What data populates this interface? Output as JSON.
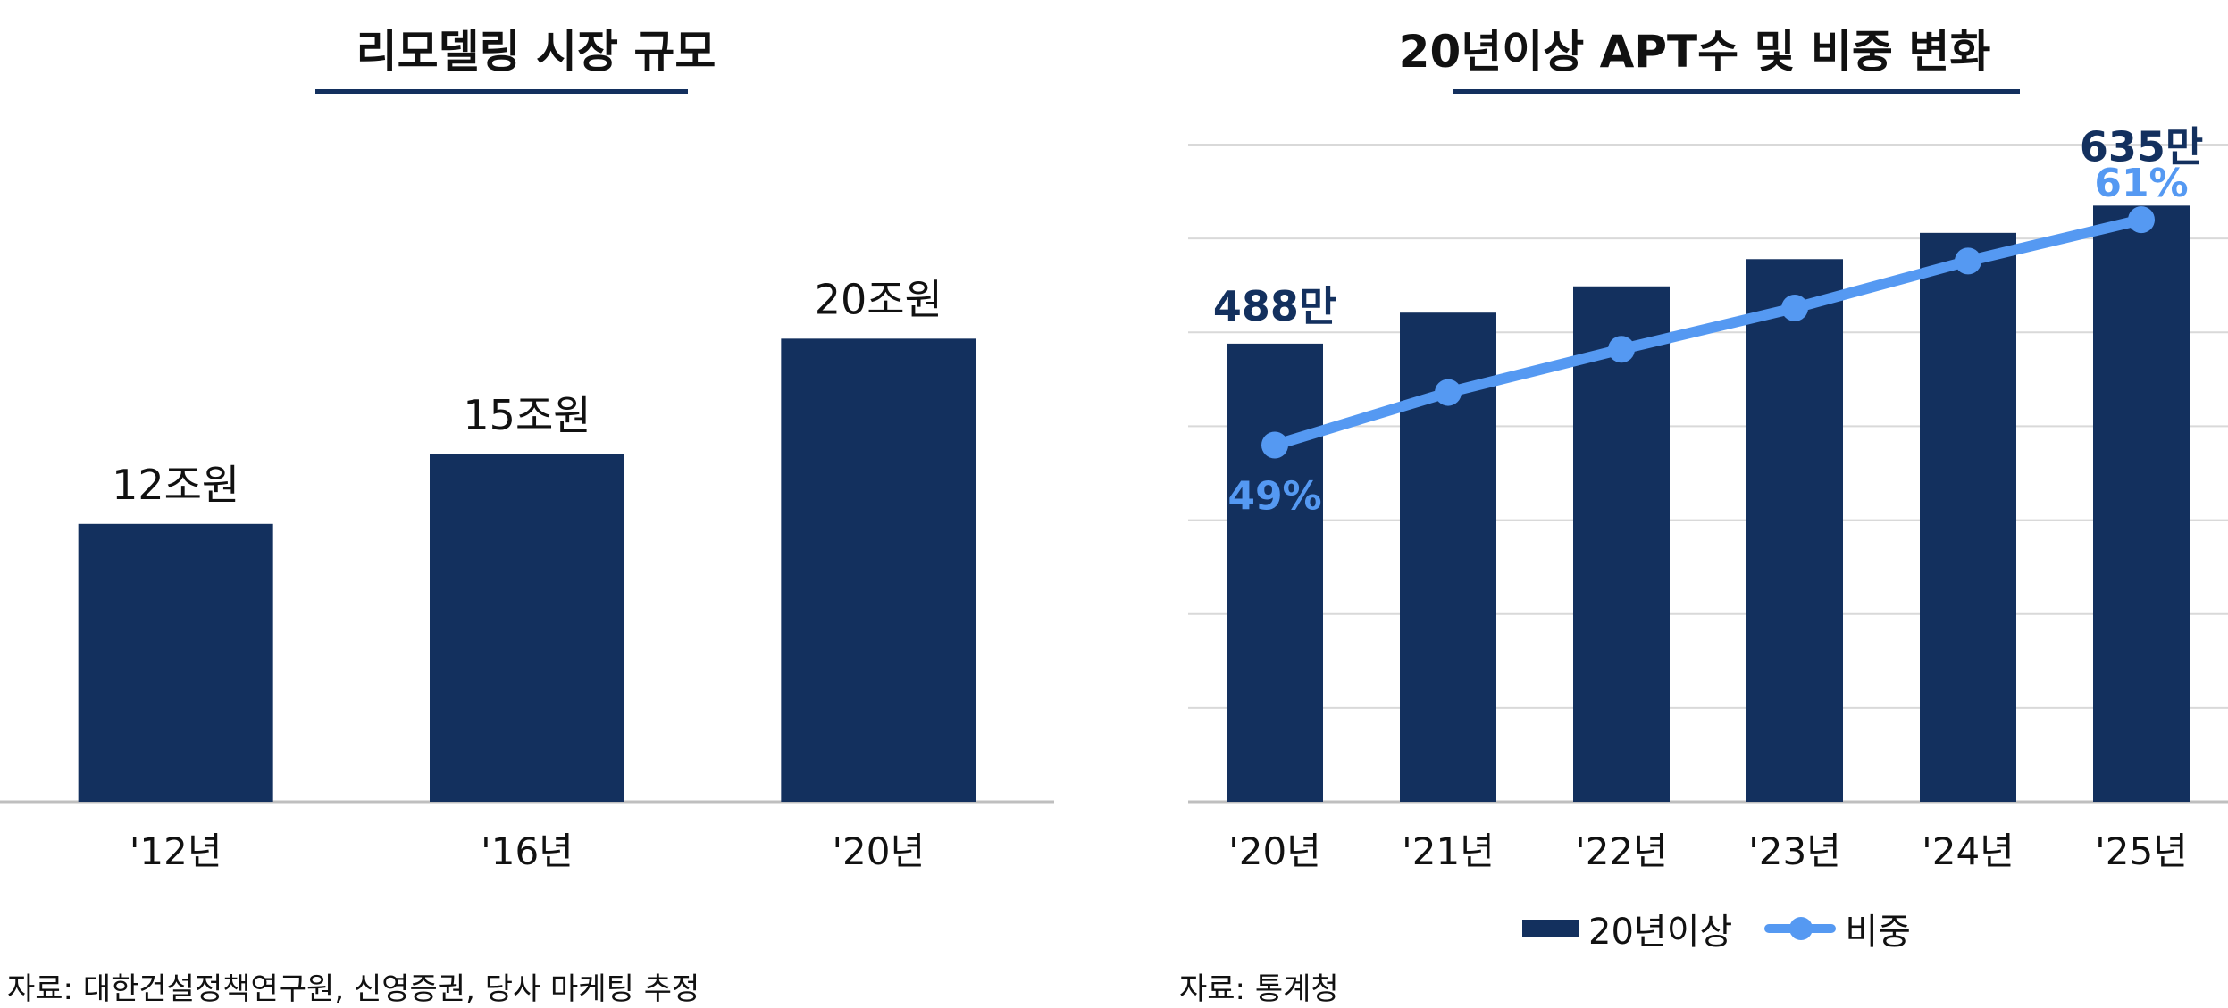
{
  "colors": {
    "bar": "#13305e",
    "line": "#5599f2",
    "grid": "#d9d9d9",
    "axis": "#bfbfbf"
  },
  "left": {
    "title": "리모델링 시장 규모",
    "source": "자료: 대한건설정책연구원, 신영증권, 당사 마케팅 추정"
  },
  "right": {
    "title": "20년이상 APT수 및 비중 변화",
    "source": "자료: 통계청",
    "legend": {
      "bar": "20년이상",
      "line": "비중"
    }
  },
  "chart_data": [
    {
      "type": "bar",
      "title": "리모델링 시장 규모",
      "categories": [
        "'12년",
        "'16년",
        "'20년"
      ],
      "values": [
        12,
        15,
        20
      ],
      "value_labels": [
        "12조원",
        "15조원",
        "20조원"
      ],
      "unit": "조원",
      "ylim": [
        0,
        30
      ],
      "grid": false
    },
    {
      "type": "bar",
      "title": "20년이상 APT수 및 비중 변화",
      "categories": [
        "'20년",
        "'21년",
        "'22년",
        "'23년",
        "'24년",
        "'25년"
      ],
      "series": [
        {
          "name": "20년이상",
          "type": "bar",
          "values": [
            488,
            521,
            549,
            578,
            606,
            635
          ],
          "unit": "만",
          "labels": [
            "488만",
            "",
            "",
            "",
            "",
            "635만"
          ],
          "ylim": [
            0,
            700
          ]
        },
        {
          "name": "비중",
          "type": "line",
          "values": [
            49,
            51.8,
            54.1,
            56.3,
            58.8,
            61
          ],
          "unit": "%",
          "labels": [
            "49%",
            "",
            "",
            "",
            "",
            "61%"
          ],
          "ylim": [
            30,
            65
          ]
        }
      ],
      "grid": true,
      "legend": "bottom"
    }
  ]
}
